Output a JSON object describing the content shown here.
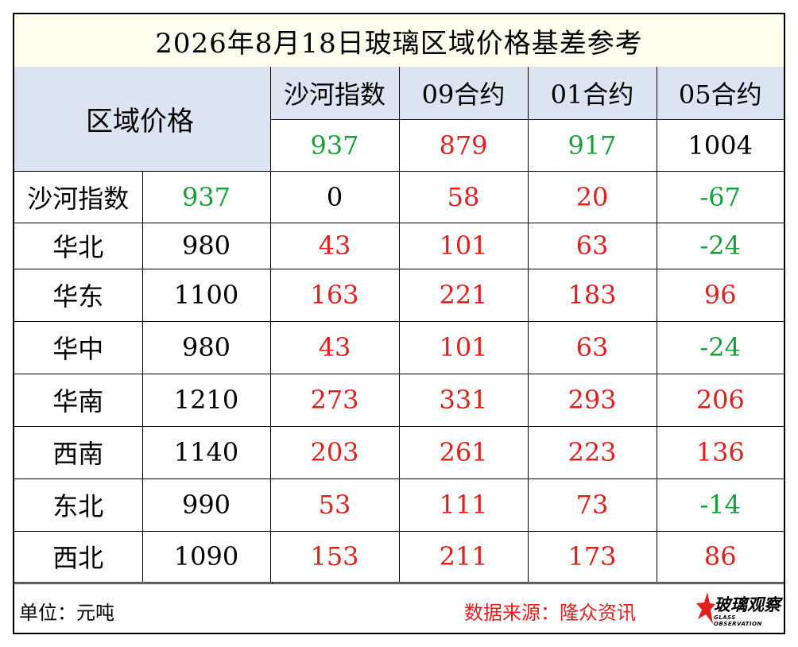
{
  "title": "2026年8月18日玻璃区域价格基差参考",
  "corner_label": "区域价格",
  "columns": [
    "沙河指数",
    "09合约",
    "01合约",
    "05合约"
  ],
  "column_prices": [
    {
      "value": "937",
      "color": "#1a9e3a"
    },
    {
      "value": "879",
      "color": "#e0201d"
    },
    {
      "value": "917",
      "color": "#1a9e3a"
    },
    {
      "value": "1004",
      "color": "#000000"
    }
  ],
  "rows": [
    {
      "region": "沙河指数",
      "price": "937",
      "price_color": "#1a9e3a",
      "basis": [
        {
          "v": "0",
          "c": "#000000"
        },
        {
          "v": "58",
          "c": "#e0201d"
        },
        {
          "v": "20",
          "c": "#e0201d"
        },
        {
          "v": "-67",
          "c": "#1a9e3a"
        }
      ]
    },
    {
      "region": "华北",
      "price": "980",
      "price_color": "#000000",
      "basis": [
        {
          "v": "43",
          "c": "#e0201d"
        },
        {
          "v": "101",
          "c": "#e0201d"
        },
        {
          "v": "63",
          "c": "#e0201d"
        },
        {
          "v": "-24",
          "c": "#1a9e3a"
        }
      ]
    },
    {
      "region": "华东",
      "price": "1100",
      "price_color": "#000000",
      "basis": [
        {
          "v": "163",
          "c": "#e0201d"
        },
        {
          "v": "221",
          "c": "#e0201d"
        },
        {
          "v": "183",
          "c": "#e0201d"
        },
        {
          "v": "96",
          "c": "#e0201d"
        }
      ]
    },
    {
      "region": "华中",
      "price": "980",
      "price_color": "#000000",
      "basis": [
        {
          "v": "43",
          "c": "#e0201d"
        },
        {
          "v": "101",
          "c": "#e0201d"
        },
        {
          "v": "63",
          "c": "#e0201d"
        },
        {
          "v": "-24",
          "c": "#1a9e3a"
        }
      ]
    },
    {
      "region": "华南",
      "price": "1210",
      "price_color": "#000000",
      "basis": [
        {
          "v": "273",
          "c": "#e0201d"
        },
        {
          "v": "331",
          "c": "#e0201d"
        },
        {
          "v": "293",
          "c": "#e0201d"
        },
        {
          "v": "206",
          "c": "#e0201d"
        }
      ]
    },
    {
      "region": "西南",
      "price": "1140",
      "price_color": "#000000",
      "basis": [
        {
          "v": "203",
          "c": "#e0201d"
        },
        {
          "v": "261",
          "c": "#e0201d"
        },
        {
          "v": "223",
          "c": "#e0201d"
        },
        {
          "v": "136",
          "c": "#e0201d"
        }
      ]
    },
    {
      "region": "东北",
      "price": "990",
      "price_color": "#000000",
      "basis": [
        {
          "v": "53",
          "c": "#e0201d"
        },
        {
          "v": "111",
          "c": "#e0201d"
        },
        {
          "v": "73",
          "c": "#e0201d"
        },
        {
          "v": "-14",
          "c": "#1a9e3a"
        }
      ]
    },
    {
      "region": "西北",
      "price": "1090",
      "price_color": "#000000",
      "basis": [
        {
          "v": "153",
          "c": "#e0201d"
        },
        {
          "v": "211",
          "c": "#e0201d"
        },
        {
          "v": "173",
          "c": "#e0201d"
        },
        {
          "v": "86",
          "c": "#e0201d"
        }
      ]
    }
  ],
  "footer": {
    "unit": "单位：元吨",
    "source": "数据来源：隆众资讯",
    "logo_text": "玻璃观察",
    "logo_sub": "GLASS OBSERVATION"
  },
  "logo_icon": "star-icon"
}
